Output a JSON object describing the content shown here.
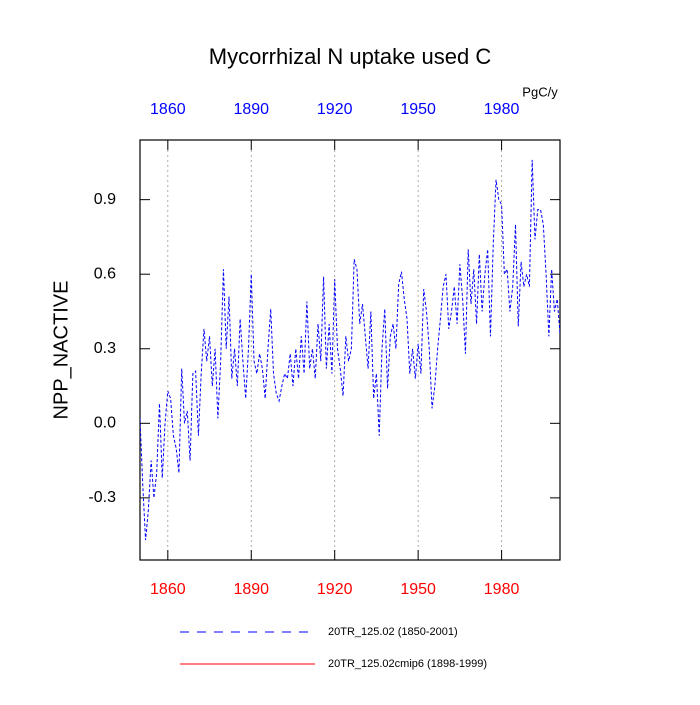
{
  "chart_data": {
    "type": "line",
    "title": "Mycorrhizal N uptake used C",
    "units": "PgC/y",
    "y_label": "NPP_NACTIVE",
    "xlim": [
      1850,
      2001
    ],
    "ylim": [
      -0.55,
      1.14
    ],
    "xticks": [
      1860,
      1890,
      1920,
      1950,
      1980
    ],
    "yticks": [
      {
        "value": 0.9,
        "label": "0.9"
      },
      {
        "value": 0.6,
        "label": "0.6"
      },
      {
        "value": 0.3,
        "label": "0.3"
      },
      {
        "value": 0,
        "label": "0.0"
      },
      {
        "value": -0.3,
        "label": "-0.3"
      }
    ],
    "top_tick_label_color": "#0000ff",
    "bottom_tick_label_color": "#ff0000",
    "grid": true,
    "x": [
      1850,
      1851,
      1852,
      1853,
      1854,
      1855,
      1856,
      1857,
      1858,
      1859,
      1860,
      1861,
      1862,
      1863,
      1864,
      1865,
      1866,
      1867,
      1868,
      1869,
      1870,
      1871,
      1872,
      1873,
      1874,
      1875,
      1876,
      1877,
      1878,
      1879,
      1880,
      1881,
      1882,
      1883,
      1884,
      1885,
      1886,
      1887,
      1888,
      1889,
      1890,
      1891,
      1892,
      1893,
      1894,
      1895,
      1896,
      1897,
      1898,
      1899,
      1900,
      1901,
      1902,
      1903,
      1904,
      1905,
      1906,
      1907,
      1908,
      1909,
      1910,
      1911,
      1912,
      1913,
      1914,
      1915,
      1916,
      1917,
      1918,
      1919,
      1920,
      1921,
      1922,
      1923,
      1924,
      1925,
      1926,
      1927,
      1928,
      1929,
      1930,
      1931,
      1932,
      1933,
      1934,
      1935,
      1936,
      1937,
      1938,
      1939,
      1940,
      1941,
      1942,
      1943,
      1944,
      1945,
      1946,
      1947,
      1948,
      1949,
      1950,
      1951,
      1952,
      1953,
      1954,
      1955,
      1956,
      1957,
      1958,
      1959,
      1960,
      1961,
      1962,
      1963,
      1964,
      1965,
      1966,
      1967,
      1968,
      1969,
      1970,
      1971,
      1972,
      1973,
      1974,
      1975,
      1976,
      1977,
      1978,
      1979,
      1980,
      1981,
      1982,
      1983,
      1984,
      1985,
      1986,
      1987,
      1988,
      1989,
      1990,
      1991,
      1992,
      1993,
      1994,
      1995,
      1996,
      1997,
      1998,
      1999,
      2000,
      2001
    ],
    "series": [
      {
        "name": "20TR_125.02 (1850-2001)",
        "color": "#0000ff",
        "dash": "dashed",
        "values": [
          0.02,
          -0.25,
          -0.47,
          -0.35,
          -0.15,
          -0.3,
          -0.2,
          0.08,
          -0.22,
          0.0,
          0.13,
          0.1,
          -0.05,
          -0.1,
          -0.2,
          0.22,
          0.0,
          0.05,
          -0.15,
          0.2,
          0.21,
          -0.05,
          0.2,
          0.38,
          0.25,
          0.35,
          0.15,
          0.3,
          0.02,
          0.25,
          0.62,
          0.3,
          0.51,
          0.18,
          0.3,
          0.15,
          0.42,
          0.25,
          0.1,
          0.3,
          0.6,
          0.25,
          0.2,
          0.28,
          0.22,
          0.1,
          0.3,
          0.46,
          0.2,
          0.12,
          0.09,
          0.15,
          0.2,
          0.18,
          0.28,
          0.15,
          0.3,
          0.18,
          0.35,
          0.2,
          0.49,
          0.22,
          0.3,
          0.18,
          0.4,
          0.25,
          0.59,
          0.22,
          0.4,
          0.2,
          0.58,
          0.3,
          0.22,
          0.11,
          0.35,
          0.25,
          0.3,
          0.66,
          0.62,
          0.4,
          0.48,
          0.35,
          0.22,
          0.45,
          0.1,
          0.2,
          -0.05,
          0.3,
          0.46,
          0.14,
          0.35,
          0.4,
          0.3,
          0.56,
          0.61,
          0.5,
          0.42,
          0.2,
          0.3,
          0.18,
          0.32,
          0.2,
          0.54,
          0.45,
          0.3,
          0.06,
          0.15,
          0.3,
          0.42,
          0.55,
          0.6,
          0.38,
          0.45,
          0.55,
          0.4,
          0.64,
          0.5,
          0.28,
          0.7,
          0.48,
          0.62,
          0.4,
          0.68,
          0.45,
          0.6,
          0.7,
          0.35,
          0.72,
          0.98,
          0.9,
          0.88,
          0.6,
          0.62,
          0.45,
          0.55,
          0.8,
          0.39,
          0.65,
          0.55,
          0.6,
          0.55,
          1.06,
          0.74,
          0.86,
          0.86,
          0.8,
          0.6,
          0.35,
          0.62,
          0.45,
          0.5,
          0.36
        ]
      },
      {
        "name": "20TR_125.02cmip6 (1898-1999)",
        "color": "#ff0000",
        "dash": "solid",
        "values": [
          null,
          null,
          null,
          null,
          null,
          null,
          null,
          null,
          null,
          null,
          null,
          null,
          null,
          null,
          null,
          null,
          null,
          null,
          null,
          null,
          null,
          null,
          null,
          null,
          null,
          null,
          null,
          null,
          null,
          null,
          null,
          null,
          null,
          null,
          null,
          null,
          null,
          null,
          null,
          null,
          null,
          null,
          null,
          null,
          null,
          null,
          null,
          null,
          null,
          null,
          null,
          null,
          null,
          null,
          null,
          null,
          null,
          null,
          null,
          null,
          null,
          null,
          null,
          null,
          null,
          null,
          null,
          null,
          null,
          null,
          null,
          null,
          null,
          null,
          null,
          null,
          null,
          null,
          null,
          null,
          null,
          null,
          null,
          null,
          null,
          null,
          null,
          null,
          null,
          null,
          null,
          null,
          null,
          null,
          null,
          null,
          null,
          null,
          null,
          null,
          null,
          null,
          null,
          null,
          null,
          null,
          null,
          null,
          null,
          null,
          null,
          null,
          null,
          null,
          null,
          null,
          null,
          null,
          null,
          null,
          null,
          null,
          null,
          null,
          null,
          null,
          null,
          null,
          null,
          null,
          null,
          null,
          null,
          null,
          null,
          null,
          null,
          null,
          null,
          null,
          null,
          null,
          null,
          null,
          null,
          null,
          null,
          null,
          null,
          null,
          null,
          null
        ]
      }
    ]
  }
}
